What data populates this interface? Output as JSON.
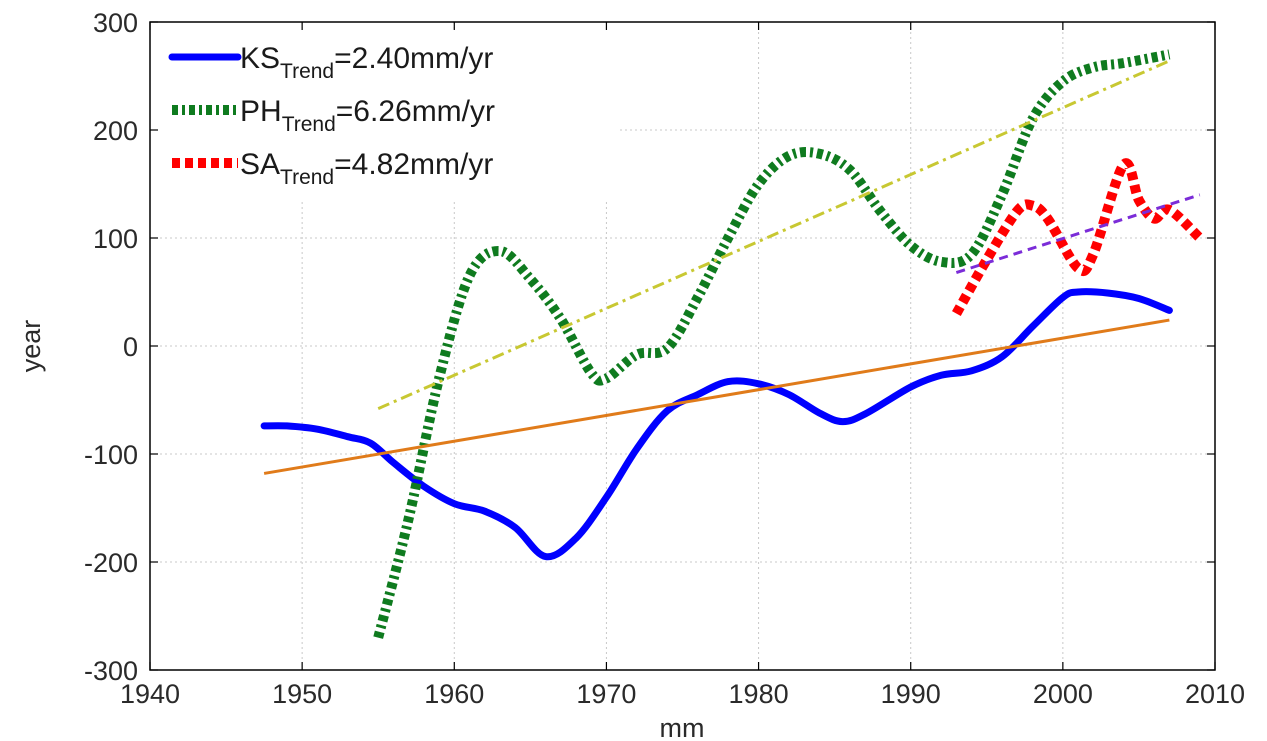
{
  "chart_data": {
    "type": "line",
    "title": "",
    "xlabel": "mm",
    "ylabel": "year",
    "xlim": [
      1940,
      2010
    ],
    "ylim": [
      -300,
      300
    ],
    "xticks": [
      1940,
      1950,
      1960,
      1970,
      1980,
      1990,
      2000,
      2010
    ],
    "yticks": [
      -300,
      -200,
      -100,
      0,
      100,
      200,
      300
    ],
    "grid": true,
    "legend_position": "top-left",
    "series": [
      {
        "name": "KS",
        "subscript": "Trend",
        "label_suffix": "=2.40mm/yr",
        "color": "#0000ff",
        "style": "solid",
        "points": [
          [
            1947.5,
            -74
          ],
          [
            1949,
            -74
          ],
          [
            1951,
            -77
          ],
          [
            1953,
            -84
          ],
          [
            1954.5,
            -90
          ],
          [
            1956,
            -108
          ],
          [
            1958,
            -130
          ],
          [
            1960,
            -146
          ],
          [
            1962,
            -153
          ],
          [
            1964,
            -168
          ],
          [
            1966,
            -195
          ],
          [
            1968,
            -178
          ],
          [
            1970,
            -140
          ],
          [
            1972,
            -95
          ],
          [
            1974,
            -60
          ],
          [
            1976,
            -45
          ],
          [
            1978,
            -33
          ],
          [
            1980,
            -35
          ],
          [
            1982,
            -45
          ],
          [
            1984,
            -62
          ],
          [
            1985.5,
            -70
          ],
          [
            1987,
            -63
          ],
          [
            1990,
            -38
          ],
          [
            1992,
            -27
          ],
          [
            1994,
            -23
          ],
          [
            1996,
            -10
          ],
          [
            1998,
            18
          ],
          [
            2000,
            45
          ],
          [
            2001,
            50
          ],
          [
            2003,
            49
          ],
          [
            2005,
            44
          ],
          [
            2007,
            33
          ]
        ]
      },
      {
        "name": "PH",
        "subscript": "Trend",
        "label_suffix": "=6.26mm/yr",
        "color": "#0f7b1f",
        "style": "dash-dot",
        "points": [
          [
            1955,
            -270
          ],
          [
            1957,
            -160
          ],
          [
            1959,
            -30
          ],
          [
            1961,
            65
          ],
          [
            1963,
            88
          ],
          [
            1965,
            62
          ],
          [
            1967,
            25
          ],
          [
            1969,
            -25
          ],
          [
            1970,
            -30
          ],
          [
            1972,
            -8
          ],
          [
            1974,
            -2
          ],
          [
            1976,
            45
          ],
          [
            1978,
            100
          ],
          [
            1980,
            150
          ],
          [
            1982,
            176
          ],
          [
            1984,
            178
          ],
          [
            1986,
            163
          ],
          [
            1988,
            125
          ],
          [
            1990,
            93
          ],
          [
            1992,
            78
          ],
          [
            1994,
            85
          ],
          [
            1996,
            140
          ],
          [
            1998,
            210
          ],
          [
            2000,
            245
          ],
          [
            2002,
            258
          ],
          [
            2004,
            262
          ],
          [
            2007,
            270
          ]
        ]
      },
      {
        "name": "SA",
        "subscript": "Trend",
        "label_suffix": "=4.82mm/yr",
        "color": "#ff0000",
        "style": "dotted",
        "points": [
          [
            1993,
            30
          ],
          [
            1995,
            80
          ],
          [
            1997,
            125
          ],
          [
            1998,
            130
          ],
          [
            1999,
            118
          ],
          [
            2001,
            72
          ],
          [
            2002,
            85
          ],
          [
            2004,
            168
          ],
          [
            2005,
            135
          ],
          [
            2006,
            118
          ],
          [
            2007,
            126
          ],
          [
            2009,
            100
          ]
        ]
      }
    ],
    "trend_lines": [
      {
        "for": "KS",
        "color": "#e07b1a",
        "style": "solid",
        "points": [
          [
            1947.5,
            -118
          ],
          [
            2007,
            24
          ]
        ]
      },
      {
        "for": "PH",
        "color": "#c8c832",
        "style": "dash-dot",
        "points": [
          [
            1955,
            -58
          ],
          [
            2007,
            264
          ]
        ]
      },
      {
        "for": "SA",
        "color": "#7b2cd8",
        "style": "dashed",
        "points": [
          [
            1993,
            68
          ],
          [
            2009,
            140
          ]
        ]
      }
    ]
  }
}
